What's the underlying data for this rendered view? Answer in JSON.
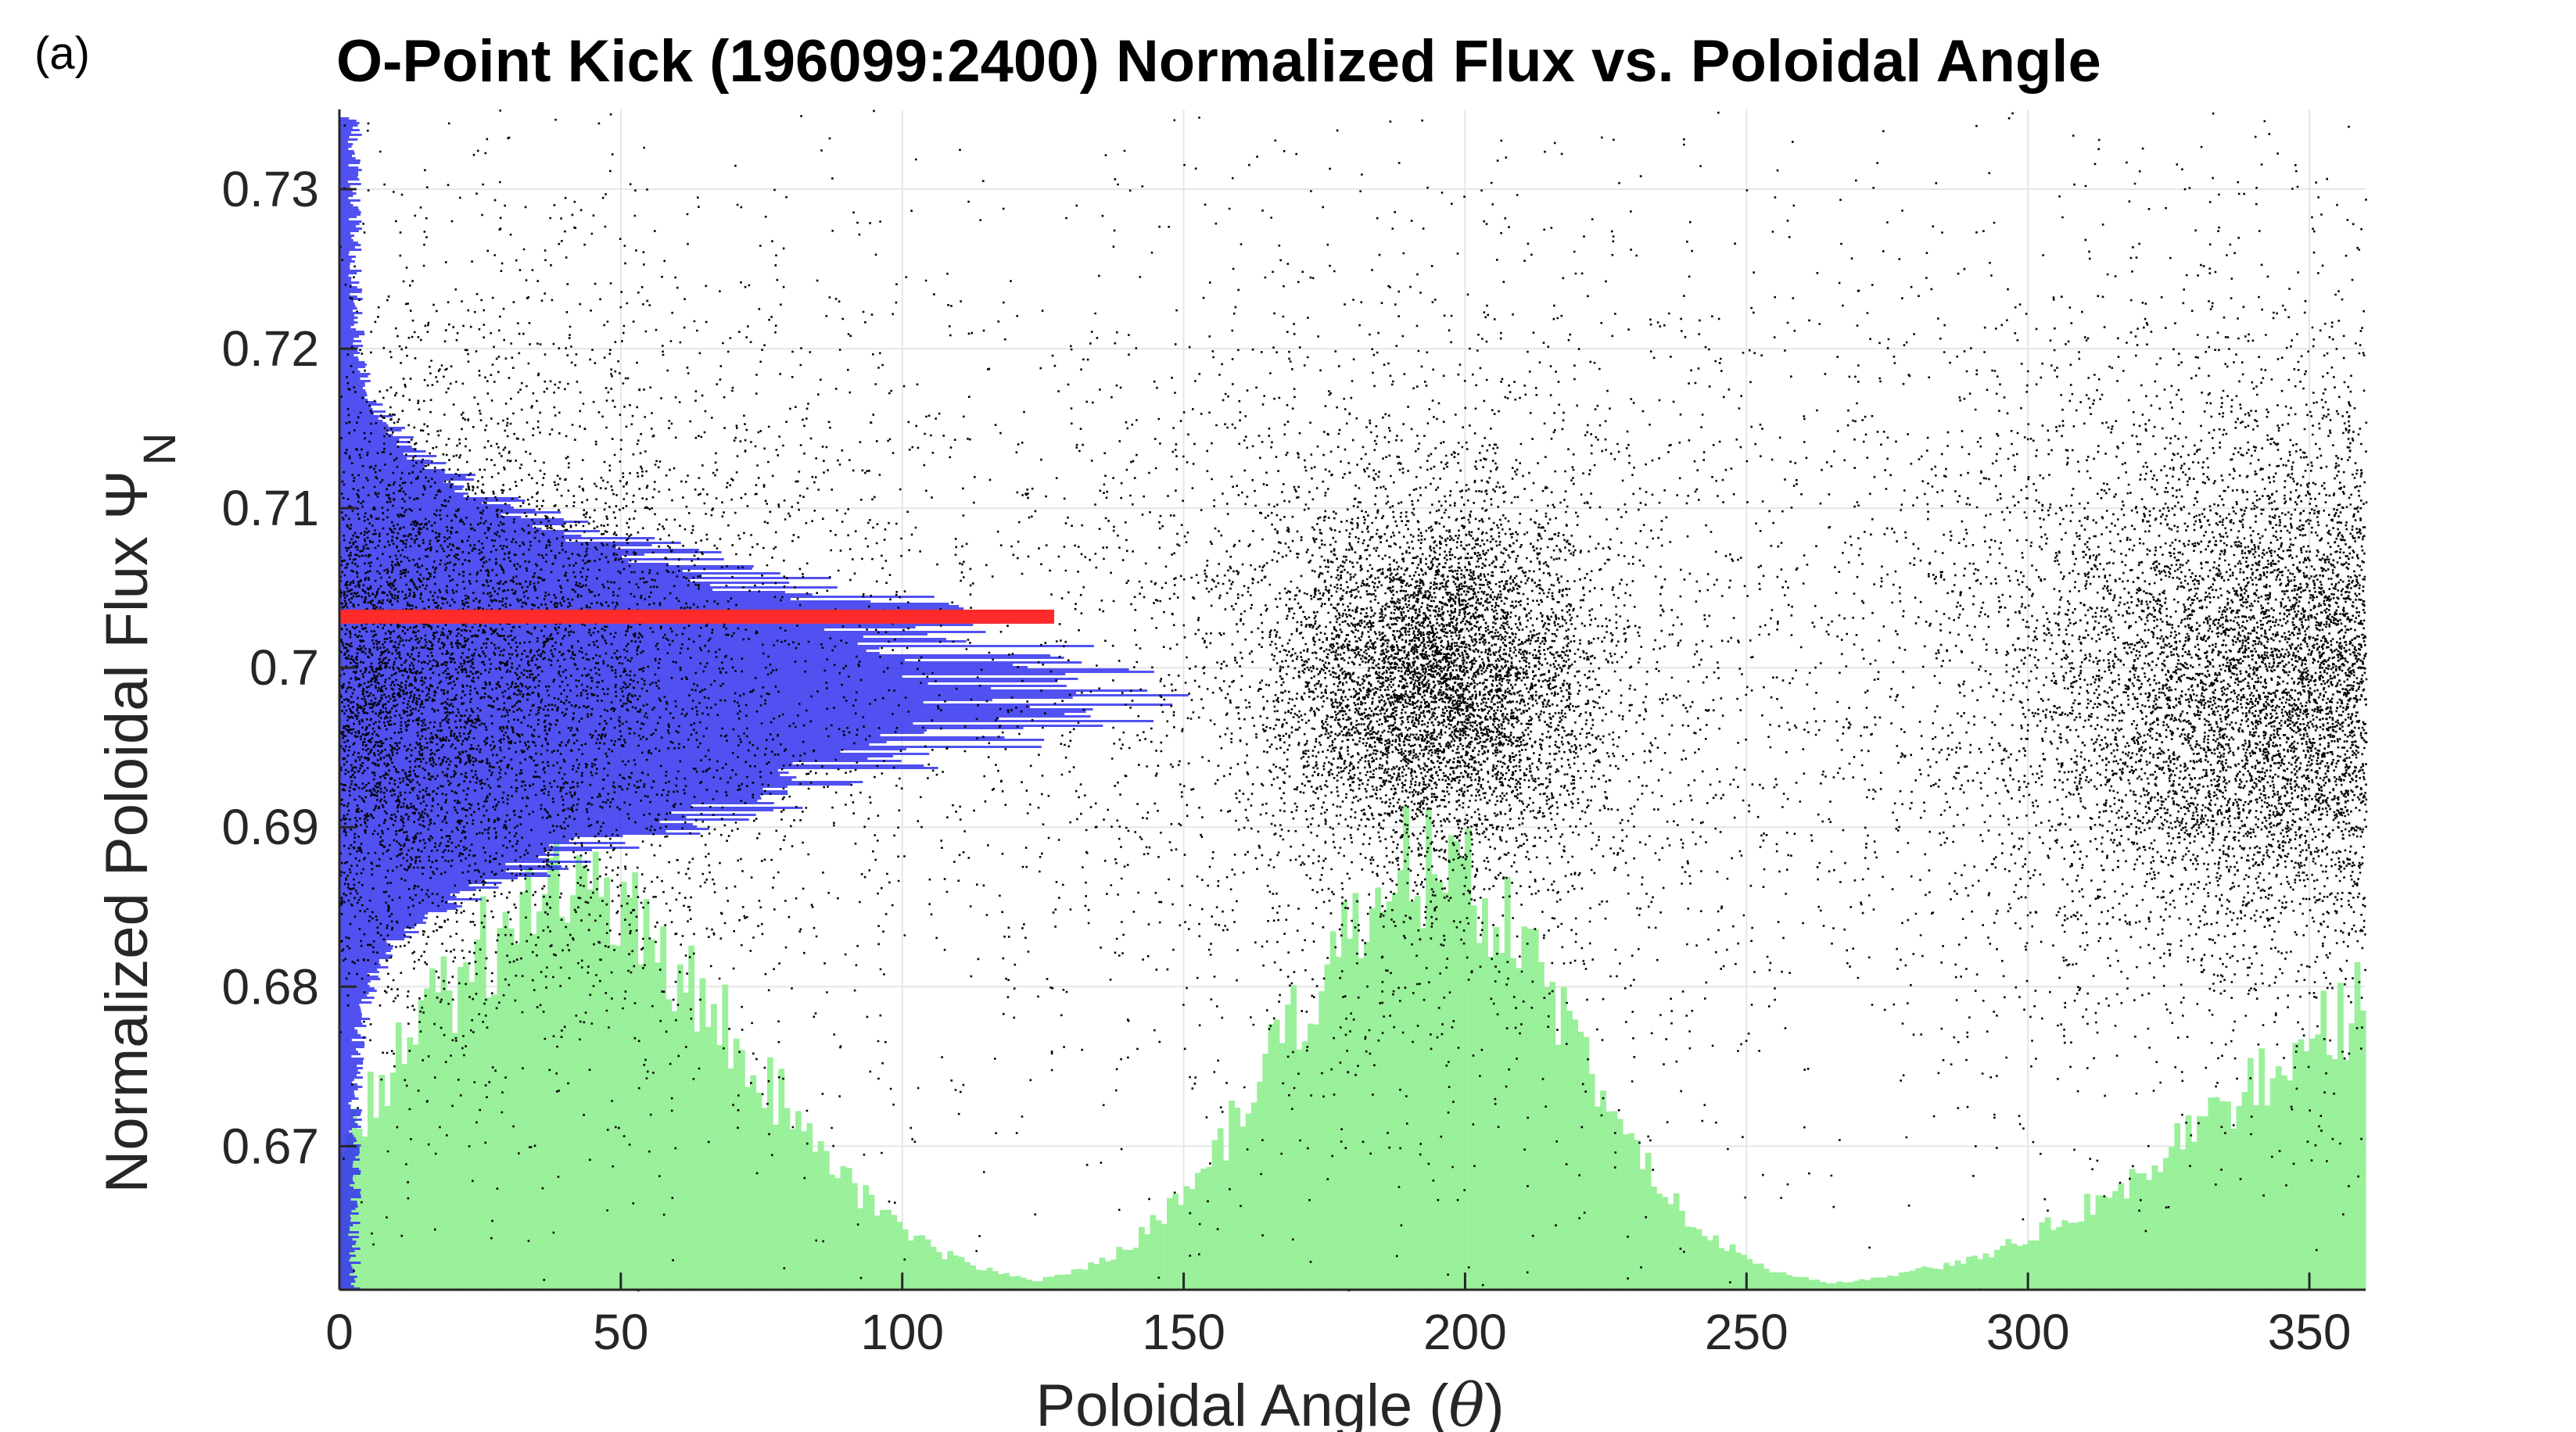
{
  "panel_label": "(a)",
  "chart_data": {
    "type": "scatter",
    "title": "O-Point Kick (196099:2400) Normalized Flux vs. Poloidal Angle",
    "xlabel": "Poloidal Angle (θ)",
    "xlabel_parts": {
      "main": "Poloidal Angle (",
      "symbol": "θ",
      "close": ")"
    },
    "ylabel": "Normalized Poloidal Flux ΨN",
    "ylabel_parts": {
      "main": "Normalized Poloidal Flux Ψ",
      "sub": "N"
    },
    "xlim": [
      0,
      360
    ],
    "ylim": [
      0.661,
      0.735
    ],
    "xticks": [
      0,
      50,
      100,
      150,
      200,
      250,
      300,
      350
    ],
    "xtick_labels": [
      "0",
      "50",
      "100",
      "150",
      "200",
      "250",
      "300",
      "350"
    ],
    "yticks": [
      0.67,
      0.68,
      0.69,
      0.7,
      0.71,
      0.72,
      0.73
    ],
    "ytick_labels": [
      "0.67",
      "0.68",
      "0.69",
      "0.7",
      "0.71",
      "0.72",
      "0.73"
    ],
    "grid": true,
    "colors": {
      "scatter": "#000000",
      "flux_histogram": "#3333ee",
      "angle_histogram": "#90ee90",
      "mean_line": "#ff2a2a",
      "grid": "#e6e6e6",
      "axis": "#262626"
    },
    "scatter_clusters": [
      {
        "theta_center": 195,
        "theta_spread": 14,
        "psi_center": 0.6995,
        "psi_spread": 0.0055,
        "count": 5500
      },
      {
        "theta_center": 188,
        "theta_spread": 40,
        "psi_center": 0.6995,
        "psi_spread": 0.014,
        "count": 3200
      },
      {
        "theta_center": 342,
        "theta_spread": 22,
        "psi_center": 0.698,
        "psi_spread": 0.0075,
        "count": 4200
      },
      {
        "theta_center": 330,
        "theta_spread": 45,
        "psi_center": 0.701,
        "psi_spread": 0.014,
        "count": 3000
      },
      {
        "theta_center": 10,
        "theta_spread": 32,
        "psi_center": 0.699,
        "psi_spread": 0.0075,
        "count": 4500
      },
      {
        "theta_center": 35,
        "theta_spread": 40,
        "psi_center": 0.701,
        "psi_spread": 0.014,
        "count": 3200
      },
      {
        "theta_center": 180,
        "theta_spread": 150,
        "psi_center": 0.7,
        "psi_spread": 0.02,
        "count": 500
      }
    ],
    "flux_histogram": {
      "description_axis": "horizontal bars along psi, length in theta units",
      "psi_center": 0.6985,
      "psi_sigma": 0.0068,
      "peak_length_theta": 133,
      "psi_range": [
        0.661,
        0.7345
      ]
    },
    "angle_histogram": {
      "theta_bin_width": 1,
      "lobes": [
        {
          "theta_center": 42,
          "theta_sigma": 30,
          "peak_psi": 0.6875
        },
        {
          "theta_center": 193,
          "theta_sigma": 25,
          "peak_psi": 0.689
        },
        {
          "theta_center": 375,
          "theta_sigma": 40,
          "peak_psi": 0.6815
        }
      ]
    },
    "mean_line": {
      "psi": 0.7032,
      "theta_start": 0,
      "theta_end": 127
    }
  }
}
